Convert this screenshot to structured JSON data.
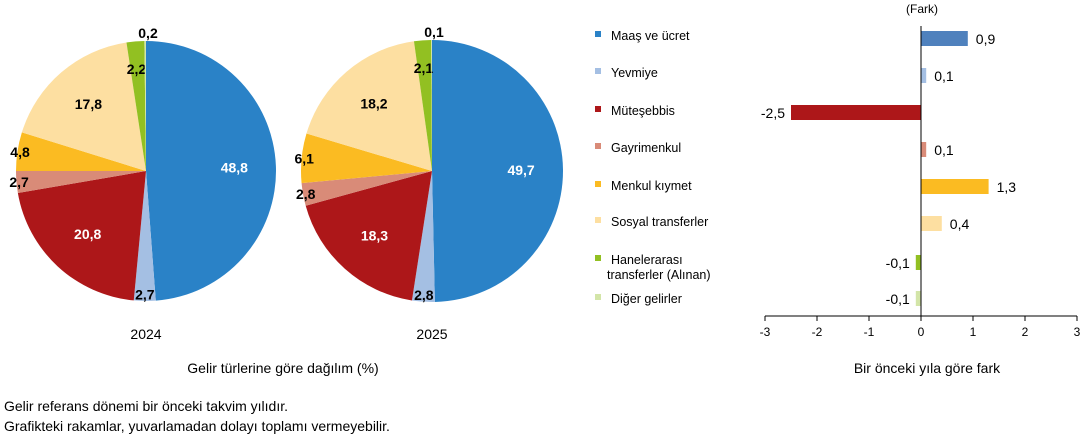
{
  "chart_data": [
    {
      "type": "pie",
      "title": "2024",
      "categories": [
        "Maaş ve ücret",
        "Yevmiye",
        "Müteşebbis",
        "Gayrimenkul",
        "Menkul kıymet",
        "Sosyal transferler",
        "Hanelerarası transferler (Alınan)",
        "Diğer gelirler"
      ],
      "values": [
        48.8,
        2.7,
        20.8,
        2.7,
        4.8,
        17.8,
        2.2,
        0.2
      ],
      "labels": [
        "48,8",
        "2,7",
        "20,8",
        "2,7",
        "4,8",
        "17,8",
        "2,2",
        "0,2"
      ]
    },
    {
      "type": "pie",
      "title": "2025",
      "categories": [
        "Maaş ve ücret",
        "Yevmiye",
        "Müteşebbis",
        "Gayrimenkul",
        "Menkul kıymet",
        "Sosyal transferler",
        "Hanelerarası transferler (Alınan)",
        "Diğer gelirler"
      ],
      "values": [
        49.7,
        2.8,
        18.3,
        2.8,
        6.1,
        18.2,
        2.1,
        0.1
      ],
      "labels": [
        "49,7",
        "2,8",
        "18,3",
        "2,8",
        "6,1",
        "18,2",
        "2,1",
        "0,1"
      ]
    },
    {
      "type": "bar",
      "orientation": "horizontal",
      "categories": [
        "Maaş ve ücret",
        "Yevmiye",
        "Müteşebbis",
        "Gayrimenkul",
        "Menkul kıymet",
        "Sosyal transferler",
        "Hanelerarası transferler (Alınan)",
        "Diğer gelirler"
      ],
      "values": [
        0.9,
        0.1,
        -2.5,
        0.1,
        1.3,
        0.4,
        -0.1,
        -0.1
      ],
      "labels": [
        "0,9",
        "0,1",
        "-2,5",
        "0,1",
        "1,3",
        "0,4",
        "-0,1",
        "-0,1"
      ],
      "ylabel": "(Fark)",
      "xlabel": "Bir önceki yıla göre fark",
      "xlim": [
        -3,
        3
      ],
      "xticks": [
        "-3",
        "-2",
        "-1",
        "0",
        "1",
        "2",
        "3"
      ]
    }
  ],
  "pie_caption": "Gelir türlerine göre dağılım (%)",
  "legend": [
    "Maaş ve ücret",
    "Yevmiye",
    "Müteşebbis",
    "Gayrimenkul",
    "Menkul kıymet",
    "Sosyal transferler",
    "Hanelerarası",
    "transferler (Alınan)",
    "Diğer gelirler"
  ],
  "colors": [
    "#2a82c7",
    "#a4bfe3",
    "#ad1719",
    "#d98b78",
    "#fbbb22",
    "#fddfa1",
    "#92c022",
    "#d3e5a8"
  ],
  "bar_colors": [
    "#4f81bd",
    "#a4bfe3",
    "#ad1719",
    "#d98b78",
    "#fbbb22",
    "#fddfa1",
    "#92c022",
    "#d3e5a8"
  ],
  "notes": [
    "Gelir referans dönemi bir önceki takvim yılıdır.",
    "Grafikteki rakamlar, yuvarlamadan dolayı toplamı vermeyebilir."
  ]
}
